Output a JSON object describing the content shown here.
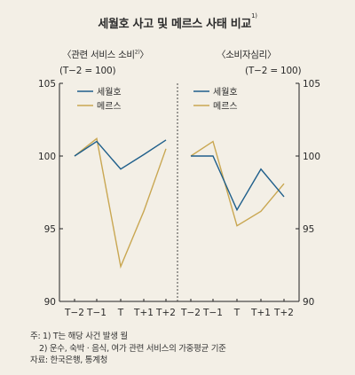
{
  "title": "세월호 사고 및 메르스 사태 비교",
  "title_sup": "1)",
  "colors": {
    "sewol": "#1f5f8b",
    "mers": "#c9a752",
    "axis": "#222222",
    "divider": "#444444"
  },
  "chart_data": [
    {
      "type": "line",
      "title": "〈관련 서비스 소비2)〉",
      "unit": "(T−2 = 100)",
      "categories": [
        "T−2",
        "T−1",
        "T",
        "T+1",
        "T+2"
      ],
      "ylim": [
        90,
        105
      ],
      "yticks": [
        90,
        95,
        100,
        105
      ],
      "legend_position": "top-left",
      "series": [
        {
          "name": "세월호",
          "color": "#1f5f8b",
          "values": [
            100,
            101.0,
            99.1,
            100.1,
            101.1
          ]
        },
        {
          "name": "메르스",
          "color": "#c9a752",
          "values": [
            100,
            101.2,
            92.4,
            96.2,
            100.5
          ]
        }
      ]
    },
    {
      "type": "line",
      "title": "〈소비자심리〉",
      "unit": "(T−2 = 100)",
      "categories": [
        "T−2",
        "T−1",
        "T",
        "T+1",
        "T+2"
      ],
      "ylim": [
        90,
        105
      ],
      "yticks": [
        90,
        95,
        100,
        105
      ],
      "legend_position": "top-left",
      "series": [
        {
          "name": "세월호",
          "color": "#1f5f8b",
          "values": [
            100,
            100.0,
            96.3,
            99.1,
            97.2
          ]
        },
        {
          "name": "메르스",
          "color": "#c9a752",
          "values": [
            100,
            101.0,
            95.2,
            96.2,
            98.1
          ]
        }
      ]
    }
  ],
  "notes": {
    "line1": "주: 1) T는 해당 사건 발생 월",
    "line2": "2) 운수, 숙박 · 음식, 여가 관련 서비스의 가중평균 기준",
    "source": "자료: 한국은행, 통계청"
  }
}
